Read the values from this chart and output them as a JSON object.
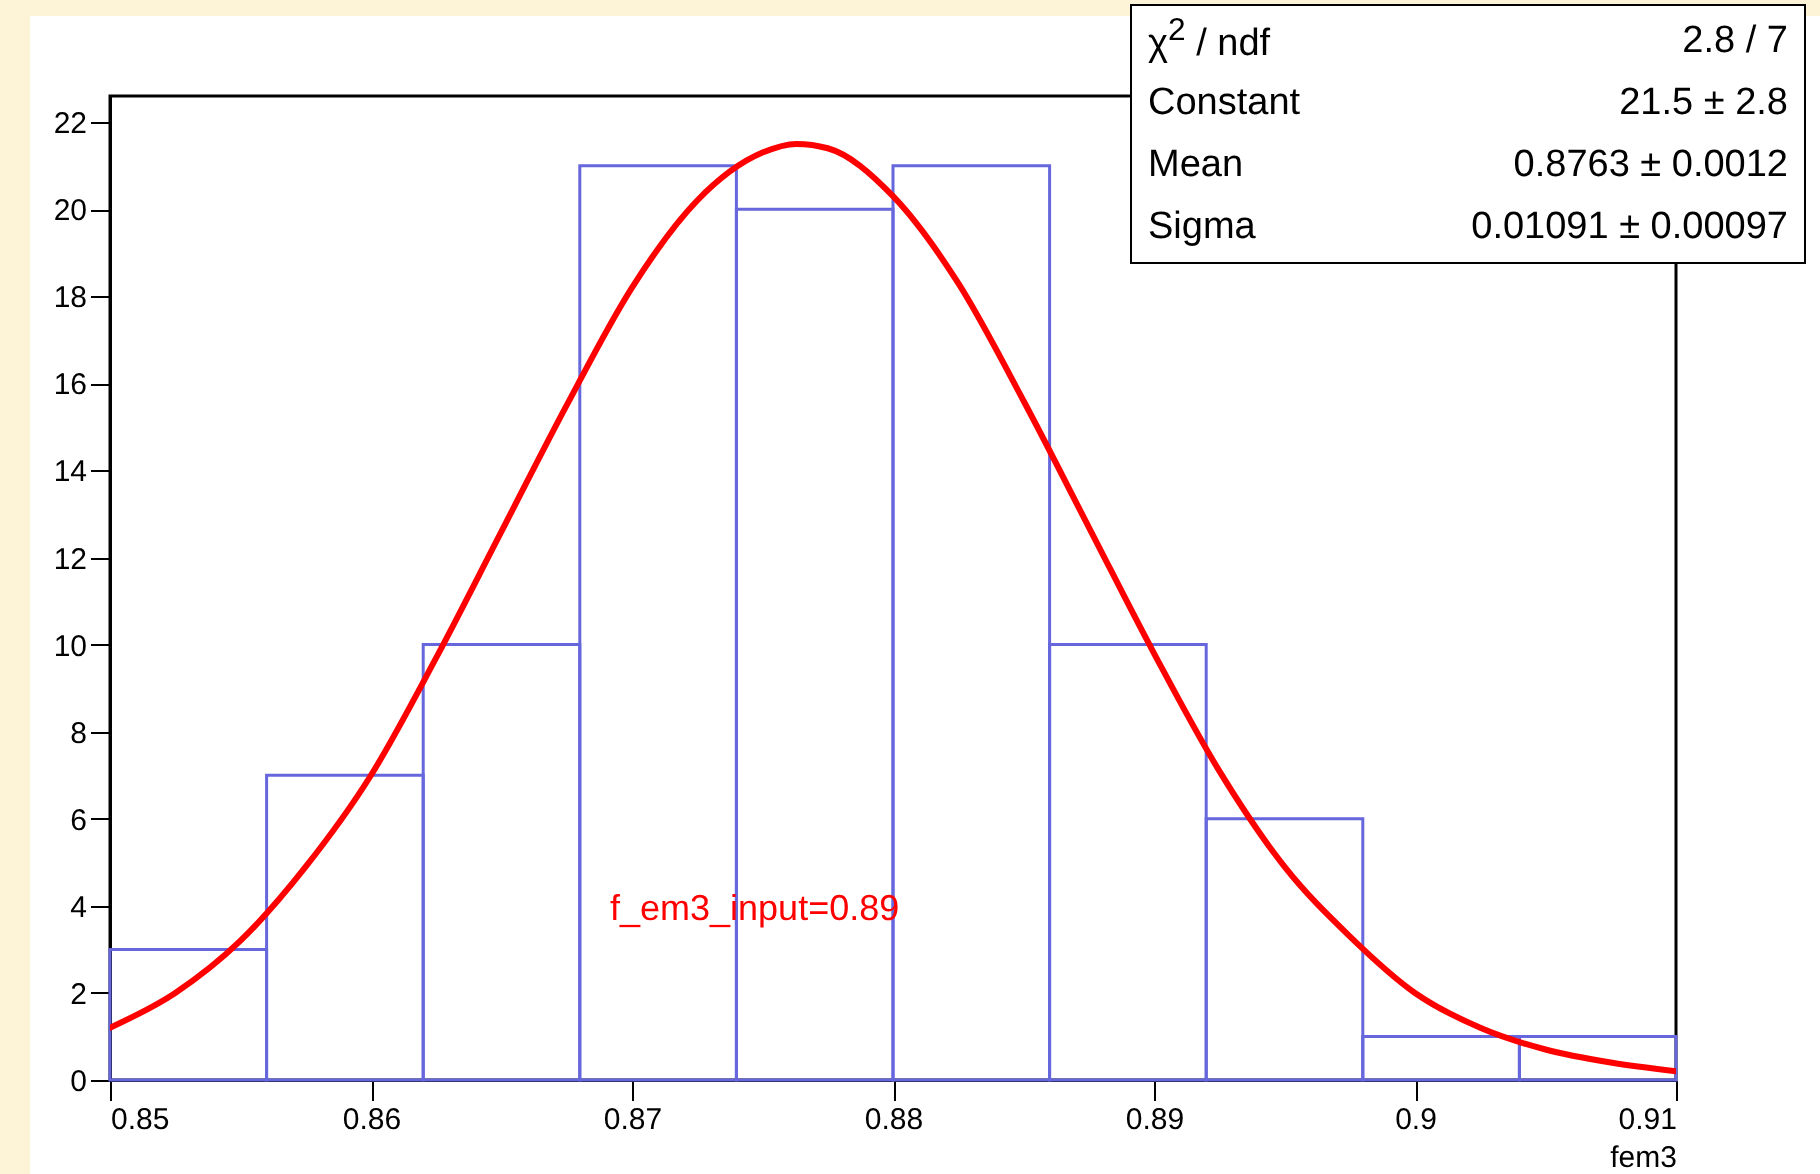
{
  "chart_data": {
    "type": "histogram",
    "xlabel": "fem3",
    "bins": [
      0.85,
      0.856,
      0.862,
      0.868,
      0.874,
      0.88,
      0.886,
      0.892,
      0.898,
      0.904,
      0.91
    ],
    "values": [
      3,
      7,
      10,
      21,
      20,
      21,
      10,
      6,
      1,
      1
    ],
    "color": "#6666dd",
    "series": [
      {
        "type": "line",
        "color": "#ff0000",
        "x": [
          0.85,
          0.8525,
          0.855,
          0.8575,
          0.86,
          0.8625,
          0.865,
          0.8675,
          0.87,
          0.8725,
          0.875,
          0.8763,
          0.8775,
          0.88,
          0.8825,
          0.885,
          0.8875,
          0.89,
          0.8925,
          0.895,
          0.8975,
          0.9,
          0.9025,
          0.905,
          0.9075,
          0.91
        ],
        "values": [
          1.2,
          2.0,
          3.2,
          4.9,
          7.0,
          9.7,
          12.6,
          15.5,
          18.2,
          20.2,
          21.3,
          21.5,
          21.4,
          20.3,
          18.3,
          15.6,
          12.7,
          9.8,
          7.1,
          4.9,
          3.3,
          2.0,
          1.2,
          0.7,
          0.4,
          0.2
        ]
      }
    ],
    "xlim": [
      0.85,
      0.91
    ],
    "xticks": [
      0.85,
      0.86,
      0.87,
      0.88,
      0.89,
      0.9,
      0.91
    ],
    "ylim": [
      0,
      22.6
    ],
    "yticks": [
      0,
      2,
      4,
      6,
      8,
      10,
      12,
      14,
      16,
      18,
      20,
      22
    ],
    "annotations": [
      "χ$^{2}$ / ndf",
      "2.8 / 7",
      "Constant",
      "21.5 ± 2.8",
      "Mean",
      "0.8763 ± 0.0012",
      "Sigma",
      "0.01091 ± 0.00097",
      "f_em3_input=0.89"
    ]
  }
}
